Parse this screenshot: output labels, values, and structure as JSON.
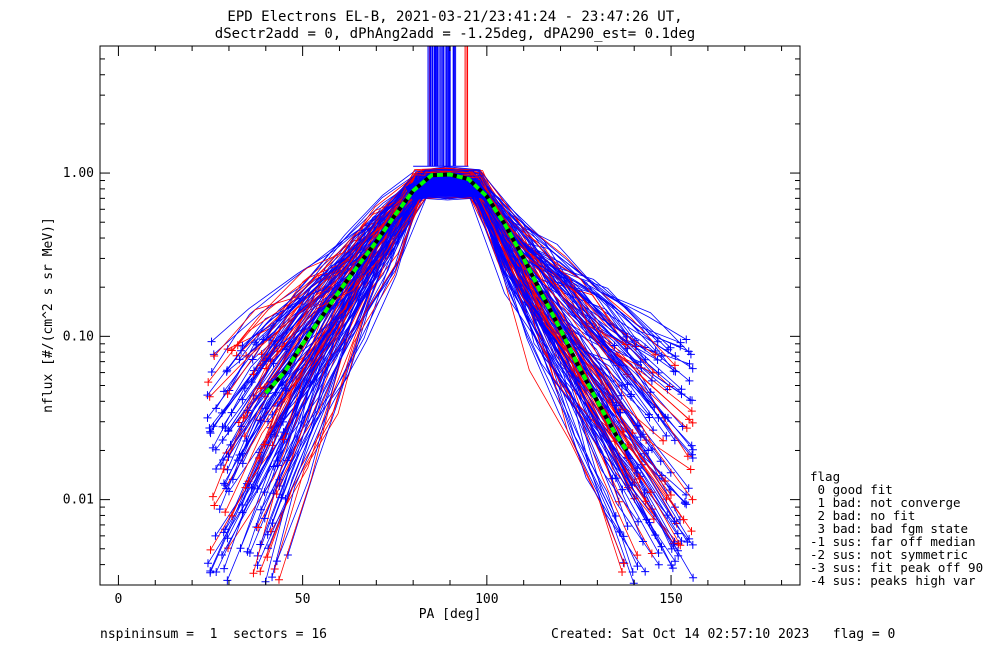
{
  "chart_data": {
    "type": "line",
    "title": "EPD Electrons EL-B, 2021-03-21/23:41:24 - 23:47:26 UT,",
    "subtitle": "dSectr2add = 0, dPhAng2add = -1.25deg, dPA290_est=   0.1deg",
    "xlabel": "PA [deg]",
    "ylabel": "nflux [#/(cm^2 s sr MeV)]",
    "xlim": [
      -5,
      185
    ],
    "ylim": [
      0.003,
      6.0
    ],
    "yscale": "log",
    "x_ticks": [
      0,
      50,
      100,
      150
    ],
    "x_tick_labels": [
      "0",
      "50",
      "100",
      "150"
    ],
    "y_ticks": [
      0.01,
      0.1,
      1.0
    ],
    "y_tick_labels": [
      "0.01",
      "0.10",
      "1.00"
    ],
    "grid": false,
    "legend_position": "right-outside-bottom",
    "colors": {
      "good": "#0000ff",
      "bad": "#ff0000",
      "median": "#00ff00",
      "median_dash": "#000000",
      "axes": "#000000"
    },
    "bundle": {
      "ascending_pa_range": [
        24,
        82
      ],
      "peak_pa_range": [
        82,
        96
      ],
      "descending_pa_range": [
        96,
        156
      ],
      "peak_flux_range": [
        0.7,
        1.05
      ],
      "wing_flux_range": [
        0.003,
        0.1
      ],
      "vertical_spike_pa_range": [
        80,
        95
      ],
      "vertical_spike_flux_range": [
        1.1,
        6.0
      ]
    },
    "series": [
      {
        "name": "median",
        "style": "dashed",
        "x": [
          40,
          45,
          50,
          55,
          60,
          65,
          70,
          75,
          80,
          85,
          90,
          95,
          100,
          105,
          110,
          115,
          120,
          125,
          130,
          135,
          138
        ],
        "y": [
          0.045,
          0.06,
          0.09,
          0.13,
          0.19,
          0.27,
          0.38,
          0.55,
          0.78,
          0.97,
          0.98,
          0.92,
          0.72,
          0.48,
          0.3,
          0.18,
          0.11,
          0.065,
          0.04,
          0.025,
          0.02
        ]
      }
    ]
  },
  "legend": {
    "title": "flag",
    "entries": [
      " 0 good fit",
      " 1 bad: not converge",
      " 2 bad: no fit",
      " 3 bad: bad fgm state",
      "-1 sus: far off median",
      "-2 sus: not symmetric",
      "-3 sus: fit peak off 90",
      "-4 sus: peaks high var"
    ]
  },
  "footer": {
    "left": "nspininsum =  1  sectors = 16",
    "right": "Created: Sat Oct 14 02:57:10 2023   flag = 0"
  }
}
